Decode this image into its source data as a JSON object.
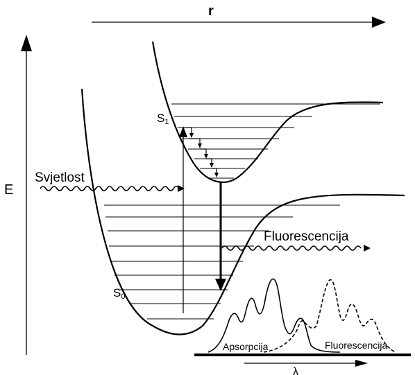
{
  "axes": {
    "r_label": "r",
    "e_label": "E",
    "lambda_label": "λ"
  },
  "states": {
    "ground": {
      "label": "S",
      "sub": "0"
    },
    "excited": {
      "label": "S",
      "sub": "1"
    }
  },
  "labels": {
    "light": "Svjetlost",
    "fluorescence": "Fluorescencija",
    "absorption_spectrum": "Apsorpcija",
    "fluorescence_spectrum": "Fluorescencija"
  }
}
